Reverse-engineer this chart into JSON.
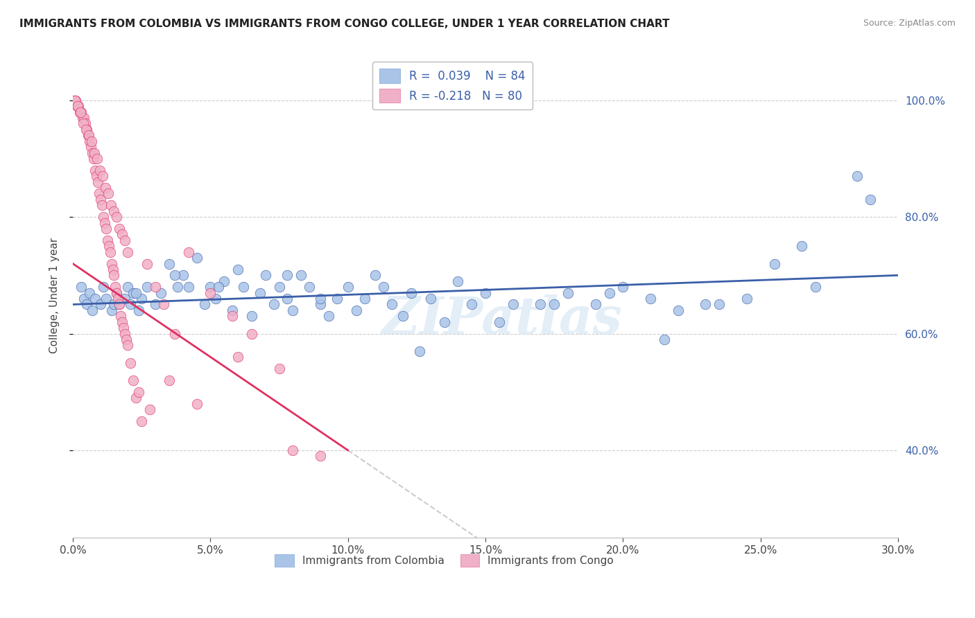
{
  "title": "IMMIGRANTS FROM COLOMBIA VS IMMIGRANTS FROM CONGO COLLEGE, UNDER 1 YEAR CORRELATION CHART",
  "source": "Source: ZipAtlas.com",
  "ylabel": "College, Under 1 year",
  "x_tick_labels": [
    "0.0%",
    "5.0%",
    "10.0%",
    "15.0%",
    "20.0%",
    "25.0%",
    "30.0%"
  ],
  "x_tick_values": [
    0.0,
    5.0,
    10.0,
    15.0,
    20.0,
    25.0,
    30.0
  ],
  "y_tick_labels": [
    "40.0%",
    "60.0%",
    "80.0%",
    "100.0%"
  ],
  "y_tick_values": [
    40.0,
    60.0,
    80.0,
    100.0
  ],
  "xlim": [
    0.0,
    30.0
  ],
  "ylim": [
    25.0,
    108.0
  ],
  "r_colombia": 0.039,
  "n_colombia": 84,
  "r_congo": -0.218,
  "n_congo": 80,
  "color_colombia": "#aac4e8",
  "color_congo": "#f0b0c8",
  "color_trendline_colombia": "#3a5fa8",
  "color_trendline_congo": "#e03060",
  "color_trendline_ext": "#cccccc",
  "watermark": "ZIPatlas",
  "colombia_x": [
    0.3,
    0.4,
    0.5,
    0.6,
    0.7,
    0.8,
    1.0,
    1.1,
    1.2,
    1.4,
    1.5,
    1.6,
    1.7,
    1.9,
    2.0,
    2.1,
    2.2,
    2.4,
    2.5,
    2.7,
    3.0,
    3.2,
    3.5,
    3.8,
    4.0,
    4.2,
    4.5,
    4.8,
    5.0,
    5.2,
    5.5,
    5.8,
    6.0,
    6.2,
    6.5,
    6.8,
    7.0,
    7.3,
    7.5,
    7.8,
    8.0,
    8.3,
    8.6,
    9.0,
    9.3,
    9.6,
    10.0,
    10.3,
    10.6,
    11.0,
    11.3,
    11.6,
    12.0,
    12.3,
    12.6,
    13.0,
    13.5,
    14.0,
    14.5,
    15.0,
    15.5,
    16.0,
    17.0,
    18.0,
    19.0,
    20.0,
    21.0,
    22.0,
    23.5,
    24.5,
    25.5,
    26.5,
    27.0,
    28.5,
    29.0,
    2.3,
    3.7,
    5.3,
    7.8,
    9.0,
    17.5,
    19.5,
    21.5,
    23.0
  ],
  "colombia_y": [
    68,
    66,
    65,
    67,
    64,
    66,
    65,
    68,
    66,
    64,
    65,
    67,
    65,
    66,
    68,
    65,
    67,
    64,
    66,
    68,
    65,
    67,
    72,
    68,
    70,
    68,
    73,
    65,
    68,
    66,
    69,
    64,
    71,
    68,
    63,
    67,
    70,
    65,
    68,
    66,
    64,
    70,
    68,
    65,
    63,
    66,
    68,
    64,
    66,
    70,
    68,
    65,
    63,
    67,
    57,
    66,
    62,
    69,
    65,
    67,
    62,
    65,
    65,
    67,
    65,
    68,
    66,
    64,
    65,
    66,
    72,
    75,
    68,
    87,
    83,
    67,
    70,
    68,
    70,
    66,
    65,
    67,
    59,
    65
  ],
  "congo_x": [
    0.05,
    0.1,
    0.15,
    0.2,
    0.25,
    0.3,
    0.35,
    0.4,
    0.45,
    0.5,
    0.55,
    0.6,
    0.65,
    0.7,
    0.75,
    0.8,
    0.85,
    0.9,
    0.95,
    1.0,
    1.05,
    1.1,
    1.15,
    1.2,
    1.25,
    1.3,
    1.35,
    1.4,
    1.45,
    1.5,
    1.55,
    1.6,
    1.65,
    1.7,
    1.75,
    1.8,
    1.85,
    1.9,
    1.95,
    2.0,
    2.1,
    2.2,
    2.3,
    2.5,
    2.7,
    3.0,
    3.3,
    3.7,
    4.2,
    5.0,
    5.8,
    6.5,
    7.5,
    9.0,
    0.08,
    0.18,
    0.28,
    0.38,
    0.48,
    0.58,
    0.68,
    0.78,
    0.88,
    0.98,
    1.08,
    1.18,
    1.28,
    1.38,
    1.48,
    1.58,
    1.68,
    1.78,
    1.88,
    1.98,
    2.4,
    2.8,
    3.5,
    4.5,
    6.0,
    8.0
  ],
  "congo_y": [
    100,
    100,
    99,
    99,
    98,
    98,
    97,
    97,
    96,
    95,
    94,
    93,
    92,
    91,
    90,
    88,
    87,
    86,
    84,
    83,
    82,
    80,
    79,
    78,
    76,
    75,
    74,
    72,
    71,
    70,
    68,
    67,
    66,
    65,
    63,
    62,
    61,
    60,
    59,
    58,
    55,
    52,
    49,
    45,
    72,
    68,
    65,
    60,
    74,
    67,
    63,
    60,
    54,
    39,
    100,
    99,
    98,
    96,
    95,
    94,
    93,
    91,
    90,
    88,
    87,
    85,
    84,
    82,
    81,
    80,
    78,
    77,
    76,
    74,
    50,
    47,
    52,
    48,
    56,
    40
  ]
}
